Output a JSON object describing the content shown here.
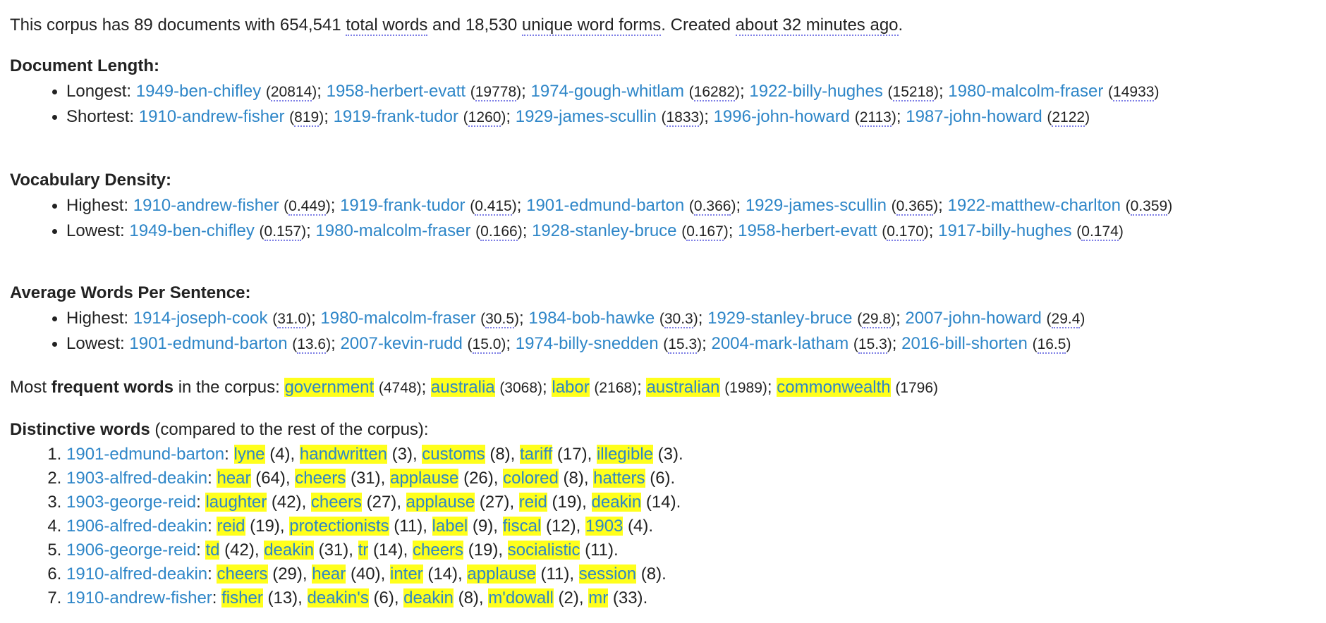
{
  "summary": {
    "pre": "This corpus has ",
    "doc_count": "89",
    "mid1": " documents with ",
    "total_words_value": "654,541",
    "total_words_label": "total words",
    "mid2": " and ",
    "unique_value": "18,530",
    "unique_label": "unique word forms",
    "mid3": ". Created ",
    "created": "about 32 minutes ago",
    "end": "."
  },
  "length": {
    "heading": "Document Length:",
    "longest_label": "Longest:",
    "longest": [
      {
        "doc": "1949-ben-chifley",
        "value": "20814"
      },
      {
        "doc": "1958-herbert-evatt",
        "value": "19778"
      },
      {
        "doc": "1974-gough-whitlam",
        "value": "16282"
      },
      {
        "doc": "1922-billy-hughes",
        "value": "15218"
      },
      {
        "doc": "1980-malcolm-fraser",
        "value": "14933"
      }
    ],
    "shortest_label": "Shortest:",
    "shortest": [
      {
        "doc": "1910-andrew-fisher",
        "value": "819"
      },
      {
        "doc": "1919-frank-tudor",
        "value": "1260"
      },
      {
        "doc": "1929-james-scullin",
        "value": "1833"
      },
      {
        "doc": "1996-john-howard",
        "value": "2113"
      },
      {
        "doc": "1987-john-howard",
        "value": "2122"
      }
    ]
  },
  "density": {
    "heading": "Vocabulary Density:",
    "highest_label": "Highest:",
    "highest": [
      {
        "doc": "1910-andrew-fisher",
        "value": "0.449"
      },
      {
        "doc": "1919-frank-tudor",
        "value": "0.415"
      },
      {
        "doc": "1901-edmund-barton",
        "value": "0.366"
      },
      {
        "doc": "1929-james-scullin",
        "value": "0.365"
      },
      {
        "doc": "1922-matthew-charlton",
        "value": "0.359"
      }
    ],
    "lowest_label": "Lowest:",
    "lowest": [
      {
        "doc": "1949-ben-chifley",
        "value": "0.157"
      },
      {
        "doc": "1980-malcolm-fraser",
        "value": "0.166"
      },
      {
        "doc": "1928-stanley-bruce",
        "value": "0.167"
      },
      {
        "doc": "1958-herbert-evatt",
        "value": "0.170"
      },
      {
        "doc": "1917-billy-hughes",
        "value": "0.174"
      }
    ]
  },
  "avg_sentence": {
    "heading": "Average Words Per Sentence:",
    "highest_label": "Highest:",
    "highest": [
      {
        "doc": "1914-joseph-cook",
        "value": "31.0"
      },
      {
        "doc": "1980-malcolm-fraser",
        "value": "30.5"
      },
      {
        "doc": "1984-bob-hawke",
        "value": "30.3"
      },
      {
        "doc": "1929-stanley-bruce",
        "value": "29.8"
      },
      {
        "doc": "2007-john-howard",
        "value": "29.4"
      }
    ],
    "lowest_label": "Lowest:",
    "lowest": [
      {
        "doc": "1901-edmund-barton",
        "value": "13.6"
      },
      {
        "doc": "2007-kevin-rudd",
        "value": "15.0"
      },
      {
        "doc": "1974-billy-snedden",
        "value": "15.3"
      },
      {
        "doc": "2004-mark-latham",
        "value": "15.3"
      },
      {
        "doc": "2016-bill-shorten",
        "value": "16.5"
      }
    ]
  },
  "frequent": {
    "pre": "Most ",
    "bold": "frequent words",
    "post": " in the corpus: ",
    "words": [
      {
        "word": "government",
        "count": "4748"
      },
      {
        "word": "australia",
        "count": "3068"
      },
      {
        "word": "labor",
        "count": "2168"
      },
      {
        "word": "australian",
        "count": "1989"
      },
      {
        "word": "commonwealth",
        "count": "1796"
      }
    ]
  },
  "distinctive": {
    "bold": "Distinctive words",
    "post": " (compared to the rest of the corpus):",
    "items": [
      {
        "doc": "1901-edmund-barton",
        "words": [
          {
            "word": "lyne",
            "count": "4"
          },
          {
            "word": "handwritten",
            "count": "3"
          },
          {
            "word": "customs",
            "count": "8"
          },
          {
            "word": "tariff",
            "count": "17"
          },
          {
            "word": "illegible",
            "count": "3"
          }
        ]
      },
      {
        "doc": "1903-alfred-deakin",
        "words": [
          {
            "word": "hear",
            "count": "64"
          },
          {
            "word": "cheers",
            "count": "31"
          },
          {
            "word": "applause",
            "count": "26"
          },
          {
            "word": "colored",
            "count": "8"
          },
          {
            "word": "hatters",
            "count": "6"
          }
        ]
      },
      {
        "doc": "1903-george-reid",
        "words": [
          {
            "word": "laughter",
            "count": "42"
          },
          {
            "word": "cheers",
            "count": "27"
          },
          {
            "word": "applause",
            "count": "27"
          },
          {
            "word": "reid",
            "count": "19"
          },
          {
            "word": "deakin",
            "count": "14"
          }
        ]
      },
      {
        "doc": "1906-alfred-deakin",
        "words": [
          {
            "word": "reid",
            "count": "19"
          },
          {
            "word": "protectionists",
            "count": "11"
          },
          {
            "word": "label",
            "count": "9"
          },
          {
            "word": "fiscal",
            "count": "12"
          },
          {
            "word": "1903",
            "count": "4"
          }
        ]
      },
      {
        "doc": "1906-george-reid",
        "words": [
          {
            "word": "td",
            "count": "42"
          },
          {
            "word": "deakin",
            "count": "31"
          },
          {
            "word": "tr",
            "count": "14"
          },
          {
            "word": "cheers",
            "count": "19"
          },
          {
            "word": "socialistic",
            "count": "11"
          }
        ]
      },
      {
        "doc": "1910-alfred-deakin",
        "words": [
          {
            "word": "cheers",
            "count": "29"
          },
          {
            "word": "hear",
            "count": "40"
          },
          {
            "word": "inter",
            "count": "14"
          },
          {
            "word": "applause",
            "count": "11"
          },
          {
            "word": "session",
            "count": "8"
          }
        ]
      },
      {
        "doc": "1910-andrew-fisher",
        "words": [
          {
            "word": "fisher",
            "count": "13"
          },
          {
            "word": "deakin's",
            "count": "6"
          },
          {
            "word": "deakin",
            "count": "8"
          },
          {
            "word": "m'dowall",
            "count": "2"
          },
          {
            "word": "mr",
            "count": "33"
          }
        ]
      }
    ]
  }
}
